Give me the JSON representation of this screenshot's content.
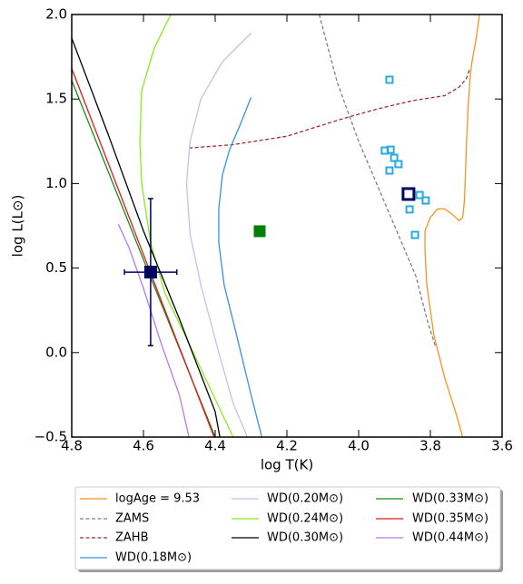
{
  "chart_data": {
    "type": "line",
    "xlabel": "log T(K)",
    "ylabel": "log L(L⊙)",
    "xlim": [
      4.8,
      3.6
    ],
    "ylim": [
      -0.5,
      2.0
    ],
    "xticks": [
      4.8,
      4.6,
      4.4,
      4.2,
      {
        "value": 4,
        "label": "4.0"
      },
      3.8,
      3.6
    ],
    "yticks": [
      {
        "value": -0.5,
        "label": "−0.5"
      },
      {
        "value": 0,
        "label": "0.0"
      },
      0.5,
      {
        "value": 1,
        "label": "1.0"
      },
      1.5,
      {
        "value": 2,
        "label": "2.0"
      }
    ],
    "series": [
      {
        "name": "logAge = 9.53",
        "color": "#f7931e",
        "linestyle": "solid",
        "x": [
          3.663,
          3.673,
          3.684,
          3.688,
          3.695,
          3.7,
          3.705,
          3.71,
          3.72,
          3.74,
          3.76,
          3.78,
          3.8,
          3.815,
          3.815,
          3.81,
          3.79,
          3.76,
          3.73,
          3.71
        ],
        "values": [
          2.0,
          1.85,
          1.72,
          1.66,
          1.45,
          1.2,
          0.9,
          0.8,
          0.78,
          0.82,
          0.85,
          0.85,
          0.8,
          0.72,
          0.6,
          0.4,
          0.1,
          -0.15,
          -0.35,
          -0.5
        ]
      },
      {
        "name": "ZAMS",
        "color": "#808080",
        "linestyle": "dashed",
        "x": [
          4.11,
          4.06,
          4.0,
          3.94,
          3.88,
          3.84,
          3.81,
          3.785
        ],
        "values": [
          2.0,
          1.6,
          1.25,
          0.95,
          0.65,
          0.45,
          0.2,
          0.03
        ]
      },
      {
        "name": "ZAHB",
        "color": "#a52a2a",
        "linestyle": "dashed",
        "x": [
          4.473,
          4.35,
          4.2,
          4.05,
          3.95,
          3.85,
          3.76,
          3.72,
          3.7,
          3.69
        ],
        "values": [
          1.21,
          1.23,
          1.28,
          1.38,
          1.44,
          1.49,
          1.52,
          1.57,
          1.62,
          1.68
        ]
      },
      {
        "name": "WD(0.18M⊙)",
        "color": "#3a8ee6",
        "linestyle": "solid",
        "x": [
          4.3,
          4.33,
          4.36,
          4.38,
          4.39,
          4.39,
          4.375,
          4.34,
          4.3,
          4.27
        ],
        "values": [
          1.51,
          1.35,
          1.2,
          1.05,
          0.85,
          0.65,
          0.4,
          0.1,
          -0.25,
          -0.5
        ]
      },
      {
        "name": "WD(0.20M⊙)",
        "color": "#c8bfe8",
        "linestyle": "solid",
        "x": [
          4.3,
          4.38,
          4.44,
          4.47,
          4.48,
          4.47,
          4.44,
          4.39,
          4.35,
          4.31
        ],
        "values": [
          1.89,
          1.72,
          1.5,
          1.25,
          1.0,
          0.7,
          0.4,
          0.0,
          -0.3,
          -0.5
        ]
      },
      {
        "name": "WD(0.24M⊙)",
        "color": "#8aeb1a",
        "linestyle": "solid",
        "x": [
          4.524,
          4.57,
          4.605,
          4.61,
          4.605,
          4.58,
          4.54,
          4.45,
          4.35
        ],
        "values": [
          2.0,
          1.8,
          1.55,
          1.25,
          1.0,
          0.65,
          0.35,
          -0.05,
          -0.5
        ]
      },
      {
        "name": "WD(0.30M⊙)",
        "color": "#000000",
        "linestyle": "solid",
        "x": [
          4.8,
          4.7,
          4.6,
          4.5,
          4.4,
          4.387
        ],
        "values": [
          1.86,
          1.3,
          0.72,
          0.2,
          -0.35,
          -0.5
        ]
      },
      {
        "name": "WD(0.33M⊙)",
        "color": "#1b8a1b",
        "linestyle": "solid",
        "x": [
          4.8,
          4.6,
          4.4
        ],
        "values": [
          1.61,
          0.55,
          -0.5
        ]
      },
      {
        "name": "WD(0.35M⊙)",
        "color": "#e31a1c",
        "linestyle": "solid",
        "x": [
          4.8,
          4.6,
          4.403
        ],
        "values": [
          1.68,
          0.58,
          -0.5
        ]
      },
      {
        "name": "WD(0.44M⊙)",
        "color": "#b57bf0",
        "linestyle": "solid",
        "x": [
          4.67,
          4.64,
          4.6,
          4.55,
          4.5,
          4.473
        ],
        "values": [
          0.76,
          0.62,
          0.38,
          0.05,
          -0.25,
          -0.5
        ]
      }
    ],
    "points": [
      {
        "color": "#29abe2",
        "filled": false,
        "size": 7,
        "x": [
          3.914,
          3.927,
          3.911,
          3.901,
          3.889,
          3.914,
          3.83,
          3.813,
          3.858,
          3.843
        ],
        "y": [
          1.614,
          1.195,
          1.2,
          1.152,
          1.115,
          1.077,
          0.932,
          0.9,
          0.847,
          0.696
        ]
      },
      {
        "color": "#000060",
        "filled": false,
        "size": 12,
        "x": [
          3.861
        ],
        "y": [
          0.938
        ]
      },
      {
        "color": "#008000",
        "filled": true,
        "size": 12,
        "x": [
          4.276
        ],
        "y": [
          0.718
        ]
      },
      {
        "color": "#000060",
        "filled": true,
        "size": 13,
        "x": [
          4.58
        ],
        "y": [
          0.476
        ],
        "xerr": 0.073,
        "yerr": 0.435
      }
    ],
    "legend": "lower center"
  }
}
